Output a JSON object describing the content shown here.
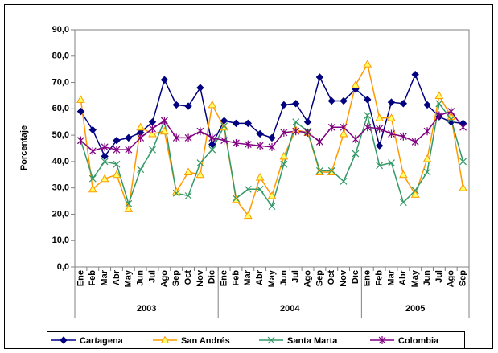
{
  "chart_data": {
    "type": "line",
    "y_label": "Porcentaje",
    "groups": [
      {
        "label": "2003",
        "months": [
          "Ene",
          "Feb",
          "Mar",
          "Abr",
          "May",
          "Jun",
          "Jul",
          "Ago",
          "Sep",
          "Oct",
          "Nov",
          "Dic"
        ]
      },
      {
        "label": "2004",
        "months": [
          "Ene",
          "Feb",
          "Mar",
          "Abr",
          "May",
          "Jun",
          "Jul",
          "Ago",
          "Sep",
          "Oct",
          "Nov",
          "Dic"
        ]
      },
      {
        "label": "2005",
        "months": [
          "Ene",
          "Feb",
          "Mar",
          "Abr",
          "May",
          "Jun",
          "Jul",
          "Ago",
          "Sep"
        ]
      }
    ],
    "ylim": [
      0,
      90
    ],
    "yticks": [
      {
        "value": 0,
        "label": "0,0"
      },
      {
        "value": 10,
        "label": "10,0"
      },
      {
        "value": 20,
        "label": "20,0"
      },
      {
        "value": 30,
        "label": "30,0"
      },
      {
        "value": 40,
        "label": "40,0"
      },
      {
        "value": 50,
        "label": "50,0"
      },
      {
        "value": 60,
        "label": "60,0"
      },
      {
        "value": 70,
        "label": "70,0"
      },
      {
        "value": 80,
        "label": "80,0"
      },
      {
        "value": 90,
        "label": "90,0"
      }
    ],
    "legend": "bottom",
    "series": [
      {
        "name": "Cartagena",
        "color": "#000080",
        "marker": "diamond",
        "values": [
          59,
          52,
          42,
          48,
          49,
          51,
          55,
          71,
          61.5,
          61,
          68,
          46.5,
          55.5,
          54.5,
          54.5,
          50.5,
          49,
          61.5,
          62,
          55,
          72,
          63,
          63,
          67.5,
          63.5,
          46,
          62.5,
          62,
          73,
          61.5,
          57,
          55,
          54.5
        ]
      },
      {
        "name": "San Andrés",
        "color": "#FF9900",
        "marker": "triangle",
        "values": [
          63.5,
          29.5,
          33.5,
          35,
          22,
          53,
          50.5,
          51.5,
          28.5,
          36,
          35,
          61.5,
          53,
          25.5,
          19.5,
          34,
          27,
          42,
          52,
          51,
          36,
          36,
          50.5,
          69,
          77,
          56.5,
          56.5,
          35,
          27.5,
          41,
          65,
          57,
          30
        ]
      },
      {
        "name": "Santa Marta",
        "color": "#339966",
        "marker": "x",
        "values": [
          48,
          33.5,
          40,
          39,
          24,
          37,
          44.5,
          55.5,
          28,
          27,
          39.5,
          44.5,
          53.5,
          26,
          29.5,
          29.5,
          23,
          39,
          55,
          51.5,
          36.5,
          36.5,
          32.5,
          43,
          57.5,
          38.5,
          39.5,
          24.5,
          29,
          36,
          62,
          56,
          40
        ]
      },
      {
        "name": "Colombia",
        "color": "#800080",
        "marker": "star",
        "values": [
          48,
          44,
          45.5,
          44.5,
          44.5,
          49,
          52.5,
          55.5,
          49,
          49,
          51.5,
          49,
          48,
          47,
          46.5,
          46,
          45.5,
          51,
          51.5,
          51,
          47.5,
          53,
          53,
          48.5,
          53,
          52.5,
          50.5,
          49.5,
          47.5,
          51.5,
          57.5,
          59,
          53
        ]
      }
    ]
  }
}
